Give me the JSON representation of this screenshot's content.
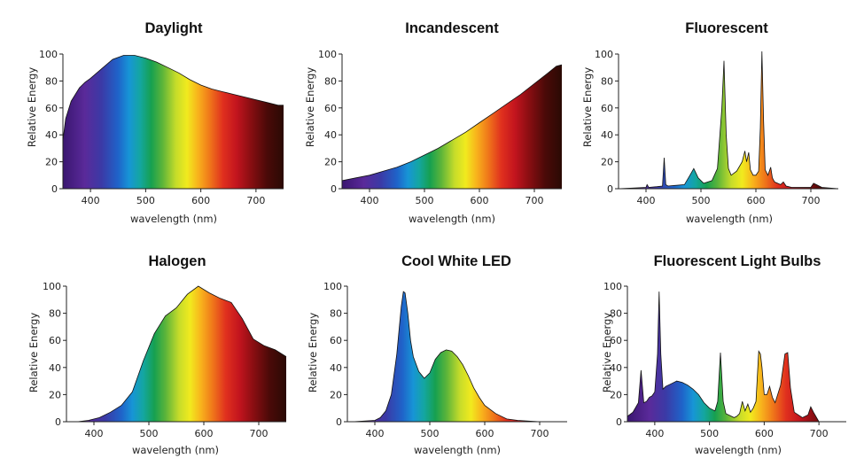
{
  "spectrum_colors": [
    {
      "nm": 350,
      "color": "#3a1670"
    },
    {
      "nm": 390,
      "color": "#5a2a9a"
    },
    {
      "nm": 420,
      "color": "#3b3aa6"
    },
    {
      "nm": 450,
      "color": "#1f63c9"
    },
    {
      "nm": 470,
      "color": "#1795d6"
    },
    {
      "nm": 490,
      "color": "#14a6a0"
    },
    {
      "nm": 510,
      "color": "#16a050"
    },
    {
      "nm": 530,
      "color": "#5ab43a"
    },
    {
      "nm": 555,
      "color": "#c6dc2a"
    },
    {
      "nm": 575,
      "color": "#f1ea1e"
    },
    {
      "nm": 595,
      "color": "#f8b21c"
    },
    {
      "nm": 615,
      "color": "#f07a1a"
    },
    {
      "nm": 640,
      "color": "#e0301e"
    },
    {
      "nm": 665,
      "color": "#c2141e"
    },
    {
      "nm": 690,
      "color": "#8a0e12"
    },
    {
      "nm": 720,
      "color": "#4a0a08"
    },
    {
      "nm": 750,
      "color": "#2a0a04"
    }
  ],
  "chart_data": [
    {
      "type": "area",
      "title": "Daylight",
      "xlabel": "wavelength (nm)",
      "ylabel": "Relative Energy",
      "xlim": [
        350,
        750
      ],
      "ylim": [
        0,
        100
      ],
      "xticks": [
        400,
        500,
        600,
        700
      ],
      "yticks": [
        0,
        20,
        40,
        60,
        80,
        100
      ],
      "grid": false,
      "x": [
        350,
        355,
        365,
        380,
        390,
        400,
        420,
        440,
        460,
        480,
        500,
        520,
        540,
        560,
        580,
        600,
        620,
        640,
        660,
        680,
        700,
        720,
        740,
        750
      ],
      "values": [
        36,
        52,
        65,
        75,
        79,
        82,
        89,
        96,
        99,
        99,
        97,
        94,
        90,
        86,
        81,
        77,
        74,
        72,
        70,
        68,
        66,
        64,
        62,
        62
      ]
    },
    {
      "type": "area",
      "title": "Incandescent",
      "xlabel": "wavelength (nm)",
      "ylabel": "Relative Energy",
      "xlim": [
        350,
        750
      ],
      "ylim": [
        0,
        100
      ],
      "xticks": [
        400,
        500,
        600,
        700
      ],
      "yticks": [
        0,
        20,
        40,
        60,
        80,
        100
      ],
      "grid": false,
      "x": [
        350,
        375,
        400,
        425,
        450,
        475,
        500,
        525,
        550,
        575,
        600,
        625,
        650,
        675,
        700,
        725,
        740,
        750
      ],
      "values": [
        6,
        8,
        10,
        13,
        16,
        20,
        25,
        30,
        36,
        42,
        49,
        56,
        63,
        70,
        78,
        86,
        91,
        92
      ]
    },
    {
      "type": "area",
      "title": "Fluorescent",
      "xlabel": "wavelength (nm)",
      "ylabel": "Relative Energy",
      "xlim": [
        350,
        750
      ],
      "ylim": [
        0,
        100
      ],
      "xticks": [
        400,
        500,
        600,
        700
      ],
      "yticks": [
        0,
        20,
        40,
        60,
        80,
        100
      ],
      "grid": false,
      "x": [
        350,
        380,
        400,
        402,
        405,
        420,
        430,
        433,
        436,
        440,
        470,
        480,
        487,
        495,
        505,
        520,
        530,
        538,
        542,
        546,
        550,
        555,
        565,
        575,
        580,
        583,
        587,
        590,
        595,
        600,
        605,
        608,
        611,
        614,
        617,
        622,
        627,
        630,
        634,
        645,
        650,
        655,
        665,
        700,
        705,
        710,
        720,
        750
      ],
      "values": [
        0,
        0.5,
        1,
        3,
        1,
        1.5,
        2,
        23,
        3,
        2,
        3,
        10,
        15,
        8,
        4,
        6,
        15,
        60,
        95,
        40,
        15,
        10,
        13,
        20,
        28,
        20,
        27,
        14,
        10,
        10,
        13,
        45,
        102,
        50,
        14,
        10,
        16,
        8,
        5,
        3,
        5,
        2,
        1,
        1,
        4,
        3,
        1,
        0
      ]
    },
    {
      "type": "area",
      "title": "Halogen",
      "xlabel": "wavelength (nm)",
      "ylabel": "Relative Energy",
      "xlim": [
        350,
        750
      ],
      "ylim": [
        0,
        100
      ],
      "xticks": [
        400,
        500,
        600,
        700
      ],
      "yticks": [
        0,
        20,
        40,
        60,
        80,
        100
      ],
      "grid": false,
      "x": [
        370,
        390,
        410,
        430,
        450,
        470,
        490,
        510,
        530,
        550,
        570,
        590,
        610,
        630,
        650,
        670,
        690,
        710,
        730,
        750
      ],
      "values": [
        0,
        1,
        3,
        7,
        12,
        22,
        45,
        65,
        78,
        84,
        94,
        100,
        95,
        91,
        88,
        76,
        61,
        56,
        53,
        48
      ]
    },
    {
      "type": "area",
      "title": "Cool White LED",
      "xlabel": "wavelength (nm)",
      "ylabel": "Relative Energy",
      "xlim": [
        350,
        750
      ],
      "ylim": [
        0,
        100
      ],
      "xticks": [
        400,
        500,
        600,
        700
      ],
      "yticks": [
        0,
        20,
        40,
        60,
        80,
        100
      ],
      "grid": false,
      "x": [
        360,
        400,
        410,
        420,
        430,
        440,
        448,
        452,
        455,
        460,
        465,
        470,
        480,
        490,
        500,
        510,
        520,
        530,
        540,
        550,
        560,
        570,
        580,
        590,
        600,
        620,
        640,
        660,
        700,
        750
      ],
      "values": [
        0,
        1,
        3,
        8,
        20,
        50,
        85,
        96,
        95,
        80,
        60,
        48,
        37,
        32,
        36,
        46,
        51,
        53,
        52,
        48,
        42,
        34,
        25,
        18,
        12,
        6,
        2,
        1,
        0,
        0
      ]
    },
    {
      "type": "area",
      "title": "Fluorescent Light Bulbs",
      "xlabel": "wavelength (nm)",
      "ylabel": "Relative Energy",
      "xlim": [
        350,
        750
      ],
      "ylim": [
        0,
        100
      ],
      "xticks": [
        400,
        500,
        600,
        700
      ],
      "yticks": [
        0,
        20,
        40,
        60,
        80,
        100
      ],
      "grid": false,
      "x": [
        350,
        360,
        370,
        375,
        380,
        385,
        390,
        395,
        400,
        405,
        408,
        411,
        415,
        420,
        430,
        440,
        450,
        460,
        470,
        480,
        490,
        500,
        510,
        515,
        520,
        525,
        530,
        545,
        550,
        555,
        560,
        565,
        570,
        575,
        580,
        585,
        590,
        593,
        596,
        600,
        605,
        610,
        615,
        620,
        630,
        638,
        643,
        648,
        655,
        670,
        680,
        685,
        690,
        700
      ],
      "values": [
        4,
        7,
        14,
        38,
        14,
        15,
        18,
        19,
        22,
        50,
        96,
        50,
        24,
        26,
        28,
        30,
        29,
        27,
        24,
        20,
        14,
        10,
        8,
        15,
        51,
        15,
        6,
        3,
        4,
        6,
        15,
        8,
        13,
        7,
        10,
        15,
        52,
        50,
        40,
        20,
        20,
        26,
        18,
        14,
        27,
        50,
        51,
        25,
        7,
        3,
        5,
        11,
        7,
        0
      ]
    }
  ]
}
